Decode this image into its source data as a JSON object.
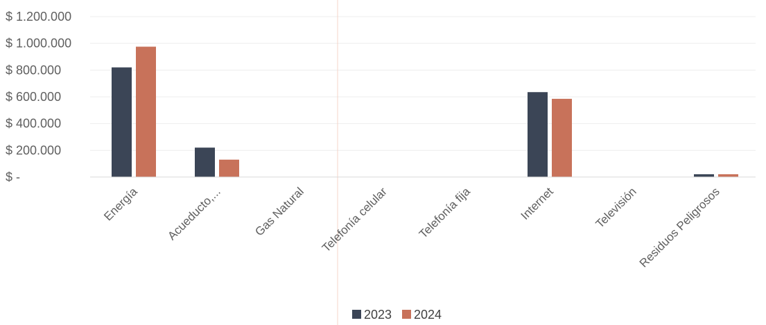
{
  "chart_data": {
    "type": "bar",
    "categories": [
      "Energía",
      "Acueducto,...",
      "Gas Natural",
      "Telefonía celular",
      "Telefonía fija",
      "Internet",
      "Televisión",
      "Residuos Peligrosos"
    ],
    "series": [
      {
        "name": "2023",
        "color": "#3b4556",
        "values": [
          820000,
          220000,
          0,
          0,
          0,
          635000,
          0,
          12000
        ]
      },
      {
        "name": "2024",
        "color": "#c8725a",
        "values": [
          975000,
          130000,
          0,
          0,
          0,
          585000,
          0,
          15000
        ]
      }
    ],
    "yticks": [
      0,
      200000,
      400000,
      600000,
      800000,
      1000000,
      1200000
    ],
    "ytick_labels": [
      "$ -",
      "$ 200.000",
      "$ 400.000",
      "$ 600.000",
      "$ 800.000",
      "$ 1.000.000",
      "$ 1.200.000"
    ],
    "ylim": [
      0,
      1200000
    ],
    "grid": true,
    "legend_position": "bottom-center",
    "title": "",
    "xlabel": "",
    "ylabel": ""
  }
}
